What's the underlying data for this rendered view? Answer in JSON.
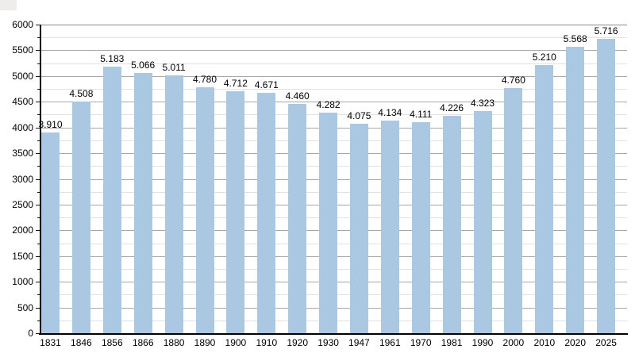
{
  "artifact": {
    "color": "#efecec"
  },
  "chart_data": {
    "type": "bar",
    "title": "",
    "xlabel": "",
    "ylabel": "",
    "categories": [
      "1831",
      "1846",
      "1856",
      "1866",
      "1880",
      "1890",
      "1900",
      "1910",
      "1920",
      "1930",
      "1947",
      "1961",
      "1970",
      "1981",
      "1990",
      "2000",
      "2010",
      "2020",
      "2025"
    ],
    "values": [
      3910,
      4508,
      5183,
      5066,
      5011,
      4780,
      4712,
      4671,
      4460,
      4282,
      4075,
      4134,
      4111,
      4226,
      4323,
      4760,
      5210,
      5568,
      5716
    ],
    "value_labels": [
      "3.910",
      "4.508",
      "5.183",
      "5.066",
      "5.011",
      "4.780",
      "4.712",
      "4.671",
      "4.460",
      "4.282",
      "4.075",
      "4.134",
      "4.111",
      "4.226",
      "4.323",
      "4.760",
      "5.210",
      "5.568",
      "5.716"
    ],
    "ylim": [
      0,
      6000
    ],
    "y_major_step": 500,
    "y_minor_step": 250,
    "y_tick_labels": [
      "0",
      "500",
      "1000",
      "1500",
      "2000",
      "2500",
      "3000",
      "3500",
      "4000",
      "4500",
      "5000",
      "5500",
      "6000"
    ],
    "grid": true,
    "legend": false,
    "bar_color": "#abc8e2",
    "major_grid_color": "#a8a8a8",
    "minor_grid_color": "#e2e2e2",
    "top_grid_color": "#8c8c8c",
    "axis_color": "#000000",
    "text_color": "#000000"
  }
}
